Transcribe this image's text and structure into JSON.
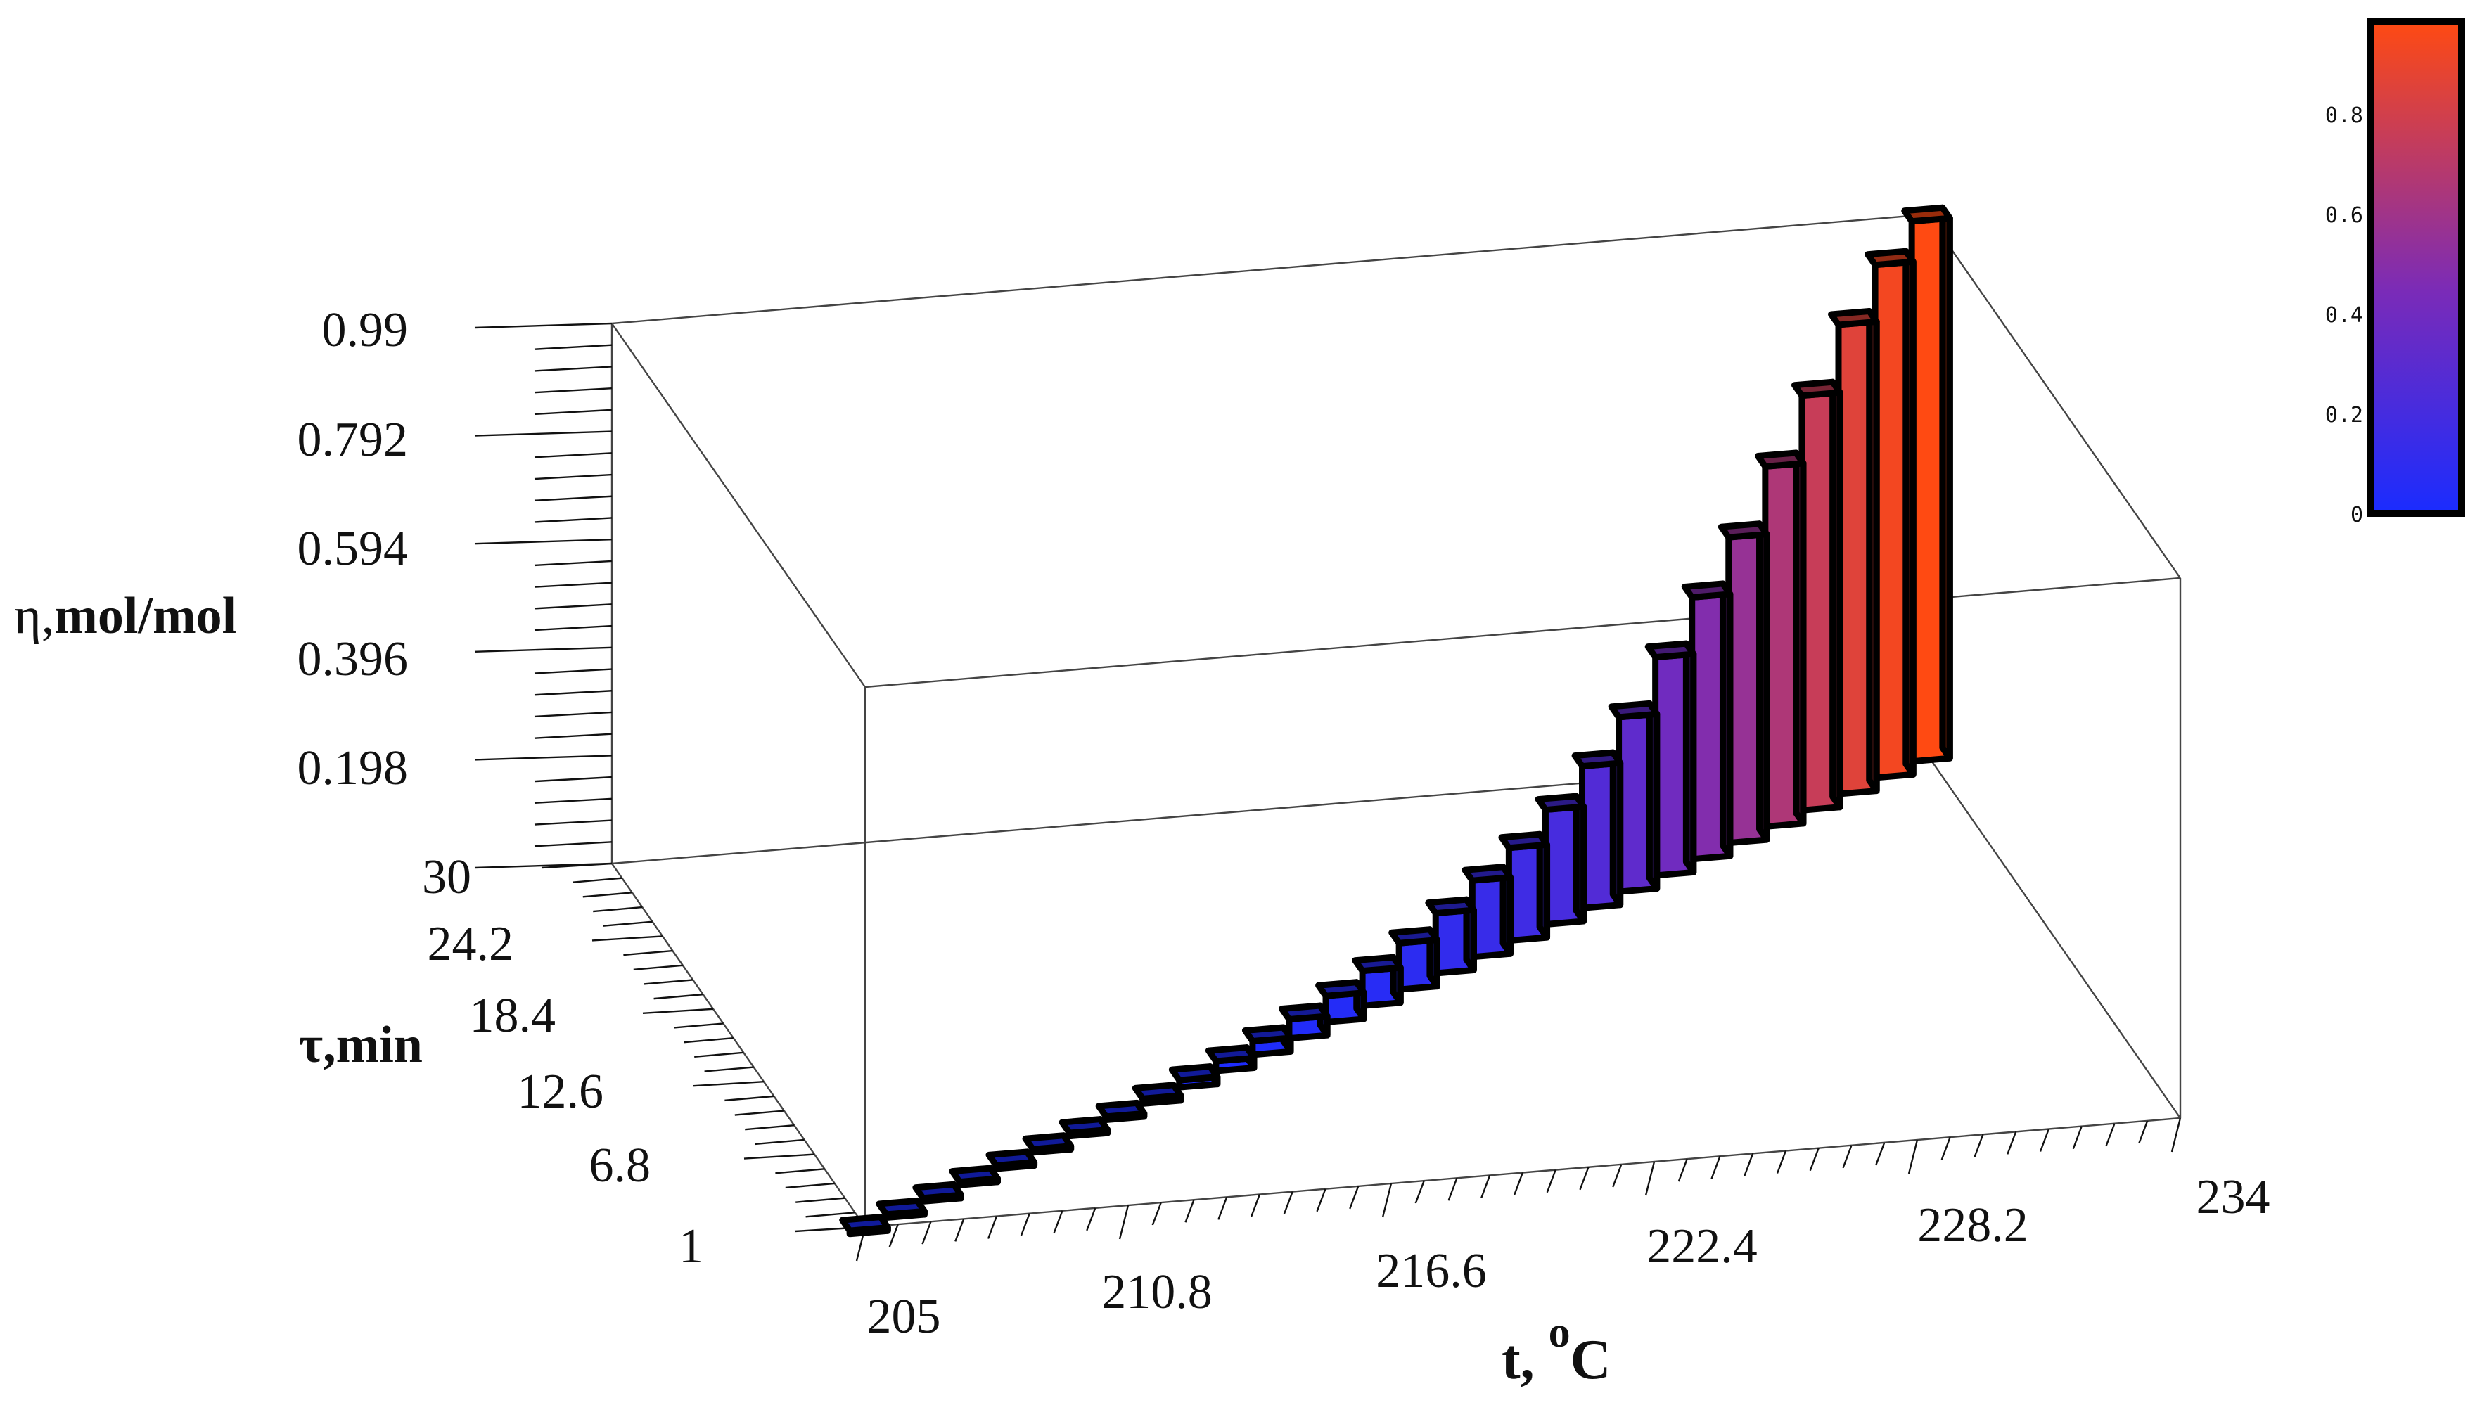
{
  "chart_data": {
    "type": "bar3d",
    "xlabel": "t, ",
    "xlabel_sup": "o",
    "xlabel_unit": "C",
    "ylabel": "τ,min",
    "zlabel_sym": "η,",
    "zlabel": "mol/mol",
    "x_ticks": [
      "205",
      "210.8",
      "216.6",
      "222.4",
      "228.2",
      "234"
    ],
    "y_ticks": [
      "1",
      "6.8",
      "12.6",
      "18.4",
      "24.2",
      "30"
    ],
    "z_ticks": [
      "0.198",
      "0.396",
      "0.594",
      "0.792",
      "0.99"
    ],
    "z_bottom_label": "30",
    "xlim": [
      205,
      234
    ],
    "ylim": [
      1,
      30
    ],
    "zlim": [
      0,
      0.99
    ],
    "colorbar": {
      "ticks": [
        "0",
        "0.2",
        "0.4",
        "0.6",
        "0.8"
      ],
      "range": [
        0,
        0.99
      ],
      "color_low": "#1a2cff",
      "color_mid": "#7a2bb8",
      "color_high": "#ff4a12"
    },
    "points": [
      {
        "t": 205,
        "tau": 1,
        "eta": 0.0
      },
      {
        "t": 206,
        "tau": 2,
        "eta": 0.0
      },
      {
        "t": 207,
        "tau": 3,
        "eta": 0.001
      },
      {
        "t": 208,
        "tau": 4,
        "eta": 0.001
      },
      {
        "t": 209,
        "tau": 5,
        "eta": 0.002
      },
      {
        "t": 210,
        "tau": 6,
        "eta": 0.003
      },
      {
        "t": 211,
        "tau": 7,
        "eta": 0.004
      },
      {
        "t": 212,
        "tau": 8,
        "eta": 0.006
      },
      {
        "t": 213,
        "tau": 9,
        "eta": 0.009
      },
      {
        "t": 214,
        "tau": 10,
        "eta": 0.013
      },
      {
        "t": 215,
        "tau": 11,
        "eta": 0.018
      },
      {
        "t": 216,
        "tau": 12,
        "eta": 0.025
      },
      {
        "t": 217,
        "tau": 13,
        "eta": 0.035
      },
      {
        "t": 218,
        "tau": 14,
        "eta": 0.048
      },
      {
        "t": 219,
        "tau": 15,
        "eta": 0.064
      },
      {
        "t": 220,
        "tau": 16,
        "eta": 0.085
      },
      {
        "t": 221,
        "tau": 17,
        "eta": 0.11
      },
      {
        "t": 222,
        "tau": 18,
        "eta": 0.14
      },
      {
        "t": 223,
        "tau": 19,
        "eta": 0.17
      },
      {
        "t": 224,
        "tau": 20,
        "eta": 0.21
      },
      {
        "t": 225,
        "tau": 21,
        "eta": 0.26
      },
      {
        "t": 226,
        "tau": 22,
        "eta": 0.32
      },
      {
        "t": 227,
        "tau": 23,
        "eta": 0.4
      },
      {
        "t": 228,
        "tau": 24,
        "eta": 0.48
      },
      {
        "t": 229,
        "tau": 25,
        "eta": 0.56
      },
      {
        "t": 230,
        "tau": 26,
        "eta": 0.66
      },
      {
        "t": 231,
        "tau": 27,
        "eta": 0.76
      },
      {
        "t": 232,
        "tau": 28,
        "eta": 0.86
      },
      {
        "t": 233,
        "tau": 29,
        "eta": 0.94
      },
      {
        "t": 234,
        "tau": 30,
        "eta": 0.99
      }
    ]
  }
}
